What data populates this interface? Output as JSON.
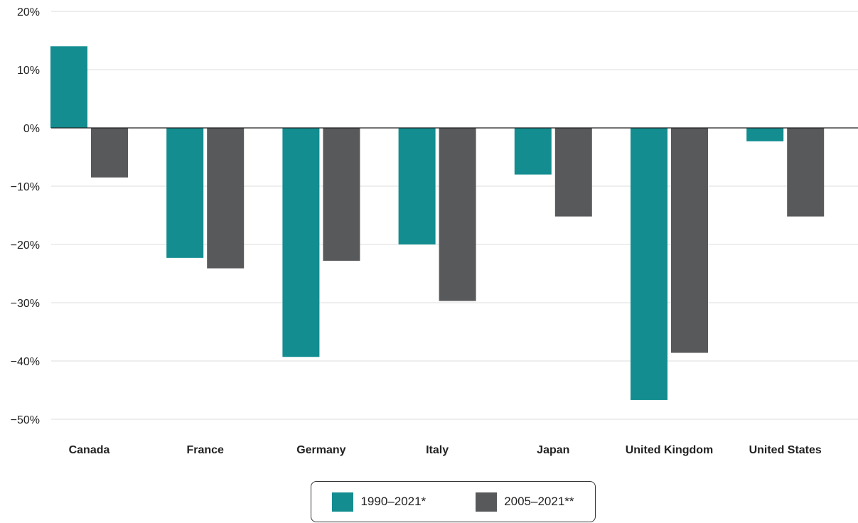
{
  "chart_data": {
    "type": "bar",
    "categories": [
      "Canada",
      "France",
      "Germany",
      "Italy",
      "Japan",
      "United Kingdom",
      "United States"
    ],
    "series": [
      {
        "name": "1990–2021*",
        "color": "#138d90",
        "values": [
          14,
          -22.3,
          -39.3,
          -20,
          -8,
          -46.7,
          -2.3
        ]
      },
      {
        "name": "2005–2021**",
        "color": "#58595b",
        "values": [
          -8.5,
          -24.1,
          -22.8,
          -29.7,
          -15.2,
          -38.6,
          -15.2
        ]
      }
    ],
    "ylim": [
      -50,
      20
    ],
    "yticks": [
      20,
      10,
      0,
      -10,
      -20,
      -30,
      -40,
      -50
    ],
    "ytick_labels": [
      "20%",
      "10%",
      "0%",
      "−10%",
      "−20%",
      "−30%",
      "−40%",
      "−50%"
    ],
    "grid": true,
    "legend_position": "bottom-center"
  }
}
